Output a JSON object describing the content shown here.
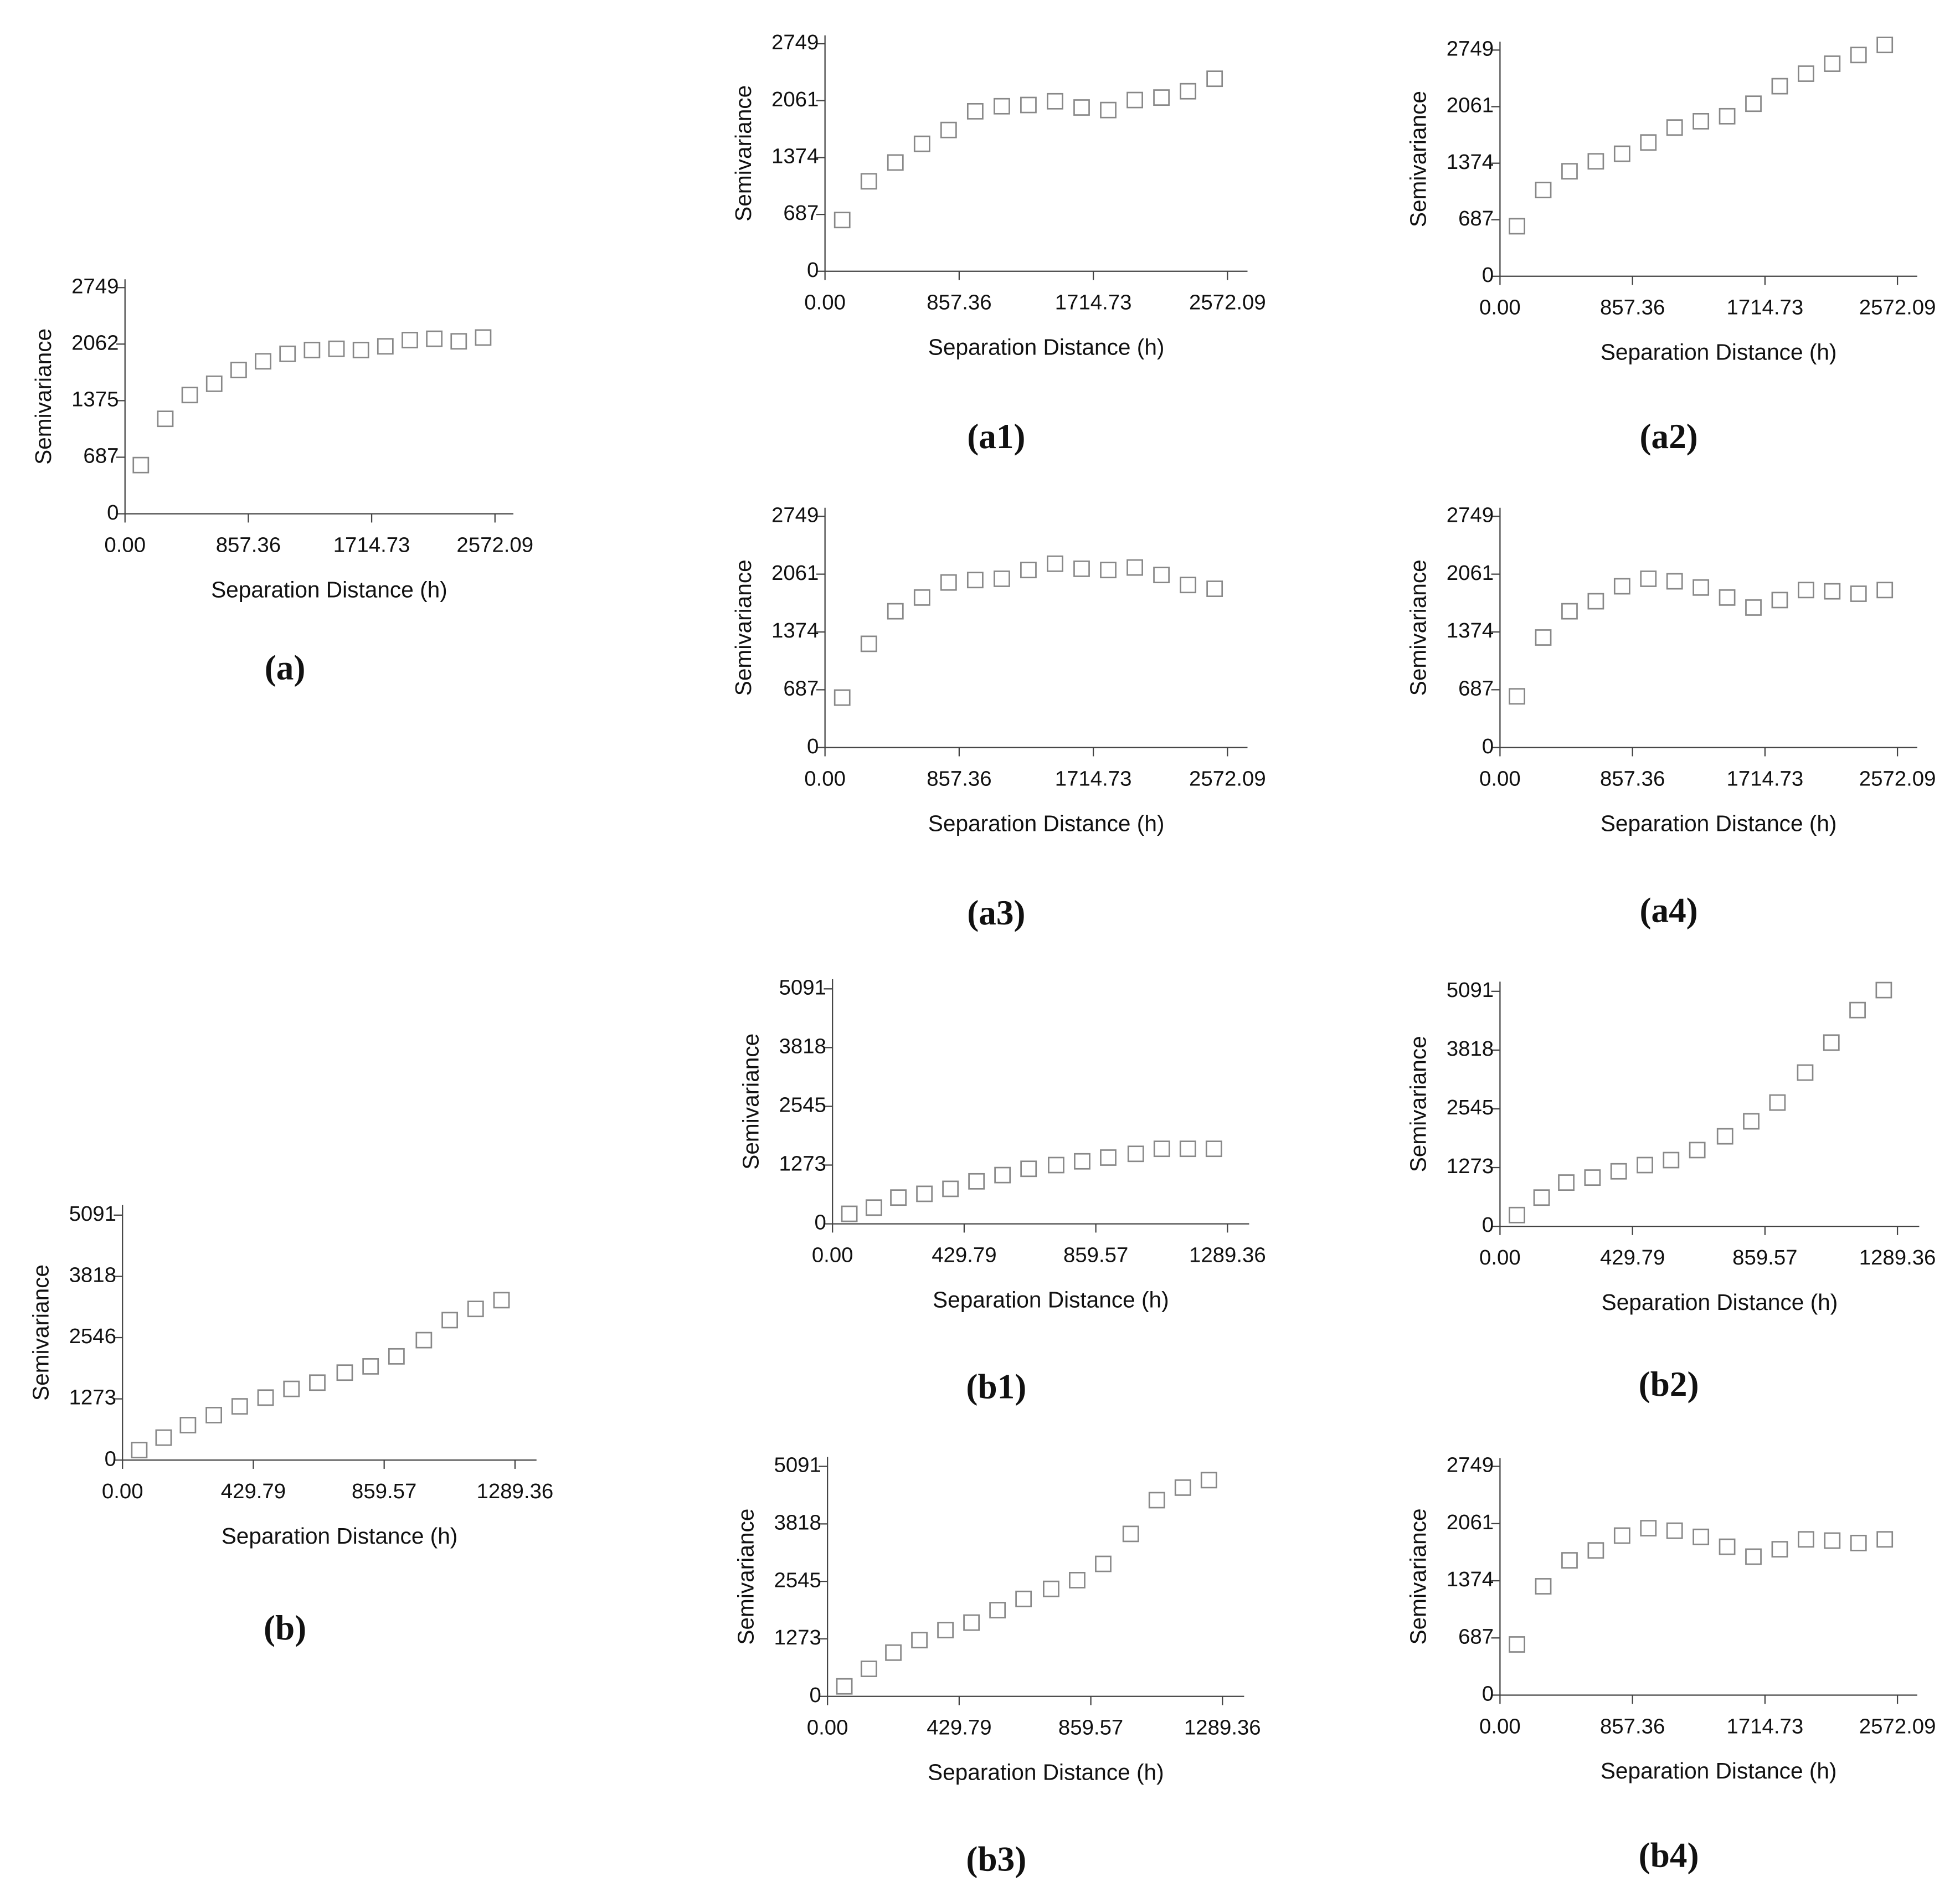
{
  "chart_data": [
    {
      "type": "scatter",
      "caption": "(a)",
      "xlabel": "Separation Distance (h)",
      "ylabel": "Semivariance",
      "color": "#888888",
      "x": [
        110,
        280,
        450,
        620,
        790,
        960,
        1130,
        1300,
        1470,
        1640,
        1810,
        1980,
        2150,
        2320,
        2490
      ],
      "values": [
        592,
        1154,
        1443,
        1580,
        1747,
        1853,
        1944,
        1990,
        2005,
        1990,
        2035,
        2111,
        2127,
        2096,
        2142
      ],
      "xlim": [
        0,
        2700
      ],
      "ylim": [
        0,
        2850
      ],
      "xticks": [
        {
          "value": 0,
          "label": "0.00"
        },
        857.36,
        1714.73,
        2572.09
      ],
      "yticks": [
        0,
        687,
        1375,
        2062,
        2749
      ]
    },
    {
      "type": "scatter",
      "caption": "(a1)",
      "xlabel": "Separation Distance (h)",
      "ylabel": "Semivariance",
      "color": "#888888",
      "x": [
        110,
        280,
        450,
        620,
        790,
        960,
        1130,
        1300,
        1470,
        1640,
        1810,
        1980,
        2150,
        2320,
        2490
      ],
      "values": [
        619,
        1087,
        1314,
        1540,
        1707,
        1933,
        1994,
        2009,
        2054,
        1979,
        1948,
        2069,
        2099,
        2175,
        2326
      ],
      "xlim": [
        0,
        2700
      ],
      "ylim": [
        0,
        2850
      ],
      "xticks": [
        {
          "value": 0,
          "label": "0.00"
        },
        857.36,
        1714.73,
        2572.09
      ],
      "yticks": [
        0,
        687,
        1374,
        2061,
        2749
      ]
    },
    {
      "type": "scatter",
      "caption": "(a2)",
      "xlabel": "Separation Distance (h)",
      "ylabel": "Semivariance",
      "color": "#888888",
      "x": [
        110,
        280,
        450,
        620,
        790,
        960,
        1130,
        1300,
        1470,
        1640,
        1810,
        1980,
        2150,
        2320,
        2490
      ],
      "values": [
        608,
        1048,
        1276,
        1397,
        1489,
        1626,
        1808,
        1884,
        1945,
        2097,
        2310,
        2462,
        2583,
        2689,
        2811
      ],
      "xlim": [
        0,
        2700
      ],
      "ylim": [
        0,
        2850
      ],
      "xticks": [
        {
          "value": 0,
          "label": "0.00"
        },
        857.36,
        1714.73,
        2572.09
      ],
      "yticks": [
        0,
        687,
        1374,
        2061,
        2749
      ]
    },
    {
      "type": "scatter",
      "caption": "(a3)",
      "xlabel": "Separation Distance (h)",
      "ylabel": "Semivariance",
      "color": "#888888",
      "x": [
        110,
        280,
        450,
        620,
        790,
        960,
        1130,
        1300,
        1470,
        1640,
        1810,
        1980,
        2150,
        2320,
        2490
      ],
      "values": [
        594,
        1233,
        1620,
        1783,
        1962,
        1991,
        2006,
        2110,
        2185,
        2125,
        2110,
        2140,
        2051,
        1932,
        1887
      ],
      "xlim": [
        0,
        2700
      ],
      "ylim": [
        0,
        2850
      ],
      "xticks": [
        {
          "value": 0,
          "label": "0.00"
        },
        857.36,
        1714.73,
        2572.09
      ],
      "yticks": [
        0,
        687,
        1374,
        2061,
        2749
      ]
    },
    {
      "type": "scatter",
      "caption": "(a4)",
      "xlabel": "Separation Distance (h)",
      "ylabel": "Semivariance",
      "color": "#888888",
      "x": [
        110,
        280,
        450,
        620,
        790,
        960,
        1130,
        1300,
        1470,
        1640,
        1810,
        1980,
        2150,
        2320,
        2490
      ],
      "values": [
        609,
        1308,
        1620,
        1739,
        1917,
        2006,
        1976,
        1902,
        1783,
        1664,
        1753,
        1872,
        1857,
        1828,
        1872
      ],
      "xlim": [
        0,
        2700
      ],
      "ylim": [
        0,
        2850
      ],
      "xticks": [
        {
          "value": 0,
          "label": "0.00"
        },
        857.36,
        1714.73,
        2572.09
      ],
      "yticks": [
        0,
        687,
        1374,
        2061,
        2749
      ]
    },
    {
      "type": "scatter",
      "caption": "(b)",
      "xlabel": "Separation Distance (h)",
      "ylabel": "Semivariance",
      "color": "#888888",
      "x": [
        55,
        135,
        215,
        300,
        385,
        470,
        555,
        640,
        730,
        815,
        900,
        990,
        1075,
        1160,
        1245
      ],
      "values": [
        208,
        467,
        727,
        935,
        1117,
        1299,
        1480,
        1610,
        1818,
        1948,
        2156,
        2493,
        2909,
        3142,
        3324
      ],
      "xlim": [
        0,
        1360
      ],
      "ylim": [
        0,
        5300
      ],
      "xticks": [
        {
          "value": 0,
          "label": "0.00"
        },
        429.79,
        859.57,
        1289.36
      ],
      "yticks": [
        0,
        1273,
        2546,
        3818,
        5091
      ]
    },
    {
      "type": "scatter",
      "caption": "(b1)",
      "xlabel": "Separation Distance (h)",
      "ylabel": "Semivariance",
      "color": "#888888",
      "x": [
        55,
        135,
        215,
        300,
        385,
        470,
        555,
        640,
        730,
        815,
        900,
        990,
        1075,
        1160,
        1245
      ],
      "values": [
        217,
        352,
        569,
        650,
        758,
        921,
        1056,
        1192,
        1273,
        1354,
        1435,
        1516,
        1625,
        1625,
        1625
      ],
      "xlim": [
        0,
        1360
      ],
      "ylim": [
        0,
        5300
      ],
      "xticks": [
        {
          "value": 0,
          "label": "0.00"
        },
        429.79,
        859.57,
        1289.36
      ],
      "yticks": [
        0,
        1273,
        2545,
        3818,
        5091
      ]
    },
    {
      "type": "scatter",
      "caption": "(b2)",
      "xlabel": "Separation Distance (h)",
      "ylabel": "Semivariance",
      "color": "#888888",
      "x": [
        55,
        135,
        215,
        300,
        385,
        470,
        555,
        640,
        730,
        815,
        900,
        990,
        1075,
        1160,
        1245
      ],
      "values": [
        244,
        623,
        948,
        1056,
        1192,
        1327,
        1435,
        1652,
        1950,
        2275,
        2681,
        3331,
        3981,
        4685,
        5118
      ],
      "xlim": [
        0,
        1360
      ],
      "ylim": [
        0,
        5300
      ],
      "xticks": [
        {
          "value": 0,
          "label": "0.00"
        },
        429.79,
        859.57,
        1289.36
      ],
      "yticks": [
        0,
        1273,
        2545,
        3818,
        5091
      ]
    },
    {
      "type": "scatter",
      "caption": "(b3)",
      "xlabel": "Separation Distance (h)",
      "ylabel": "Semivariance",
      "color": "#888888",
      "x": [
        55,
        135,
        215,
        300,
        385,
        470,
        555,
        640,
        730,
        815,
        900,
        990,
        1075,
        1160,
        1245
      ],
      "values": [
        221,
        609,
        968,
        1245,
        1467,
        1633,
        1909,
        2158,
        2380,
        2573,
        2933,
        3597,
        4344,
        4621,
        4787
      ],
      "xlim": [
        0,
        1360
      ],
      "ylim": [
        0,
        5300
      ],
      "xticks": [
        {
          "value": 0,
          "label": "0.00"
        },
        429.79,
        859.57,
        1289.36
      ],
      "yticks": [
        0,
        1273,
        2545,
        3818,
        5091
      ]
    },
    {
      "type": "scatter",
      "caption": "(b4)",
      "xlabel": "Separation Distance (h)",
      "ylabel": "Semivariance",
      "color": "#888888",
      "x": [
        110,
        280,
        450,
        620,
        790,
        960,
        1130,
        1300,
        1470,
        1640,
        1810,
        1980,
        2150,
        2320,
        2490
      ],
      "values": [
        609,
        1308,
        1620,
        1739,
        1917,
        2006,
        1976,
        1902,
        1783,
        1664,
        1753,
        1872,
        1857,
        1828,
        1872
      ],
      "xlim": [
        0,
        2700
      ],
      "ylim": [
        0,
        2850
      ],
      "xticks": [
        {
          "value": 0,
          "label": "0.00"
        },
        857.36,
        1714.73,
        2572.09
      ],
      "yticks": [
        0,
        687,
        1374,
        2061,
        2749
      ]
    }
  ]
}
